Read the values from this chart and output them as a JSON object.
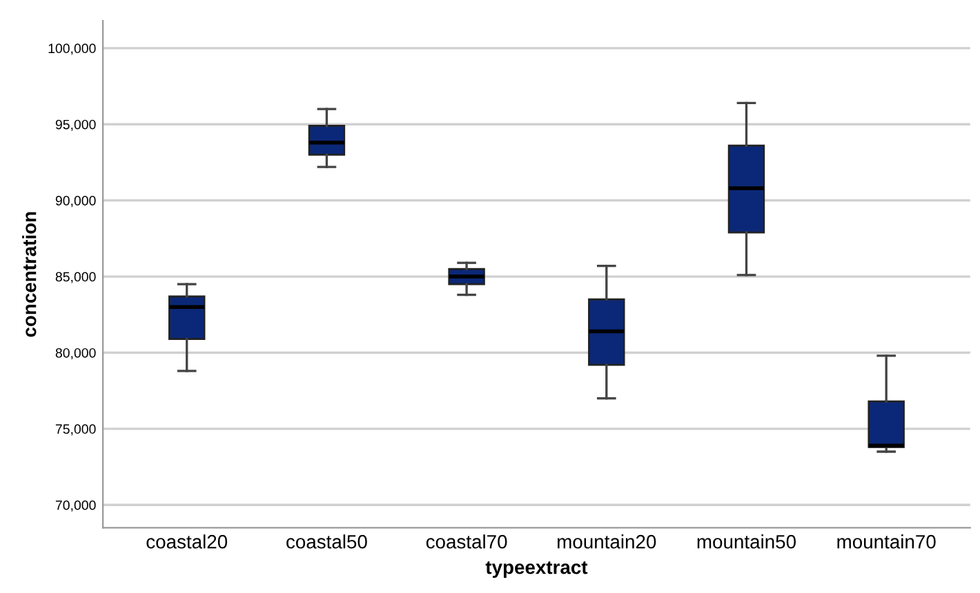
{
  "chart_data": {
    "type": "box",
    "xlabel": "typeextract",
    "ylabel": "concentration",
    "categories": [
      "coastal20",
      "coastal50",
      "coastal70",
      "mountain20",
      "mountain50",
      "mountain70"
    ],
    "boxes": [
      {
        "low": 78800,
        "q1": 80900,
        "median": 83000,
        "q3": 83700,
        "high": 84500
      },
      {
        "low": 92200,
        "q1": 93000,
        "median": 93800,
        "q3": 94900,
        "high": 96000
      },
      {
        "low": 83800,
        "q1": 84500,
        "median": 85000,
        "q3": 85500,
        "high": 85900
      },
      {
        "low": 77000,
        "q1": 79200,
        "median": 81400,
        "q3": 83500,
        "high": 85700
      },
      {
        "low": 85100,
        "q1": 87900,
        "median": 90800,
        "q3": 93600,
        "high": 96400
      },
      {
        "low": 73500,
        "q1": 73800,
        "median": 73900,
        "q3": 76800,
        "high": 79800
      }
    ],
    "color": "#0b2878",
    "ylim": [
      68500,
      101800
    ],
    "yticks": [
      {
        "value": 70000,
        "label": "70,000"
      },
      {
        "value": 75000,
        "label": "75,000"
      },
      {
        "value": 80000,
        "label": "80,000"
      },
      {
        "value": 85000,
        "label": "85,000"
      },
      {
        "value": 90000,
        "label": "90,000"
      },
      {
        "value": 95000,
        "label": "95,000"
      },
      {
        "value": 100000,
        "label": "100,000"
      }
    ],
    "grid": "y",
    "legend": false
  }
}
